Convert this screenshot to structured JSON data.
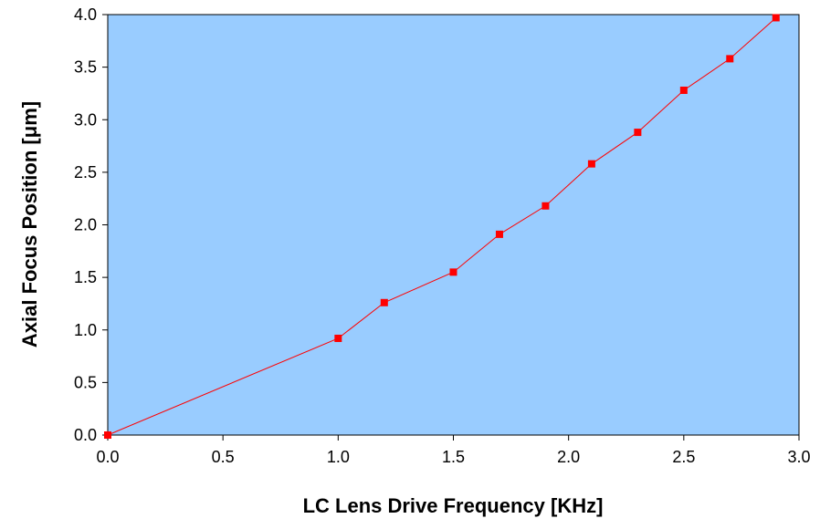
{
  "chart_data": {
    "type": "line",
    "title": "",
    "xlabel": "LC Lens Drive Frequency [KHz]",
    "ylabel": "Axial Focus Position [μm]",
    "xlim": [
      0.0,
      3.0
    ],
    "ylim": [
      0.0,
      4.0
    ],
    "x_ticks": [
      "0.0",
      "0.5",
      "1.0",
      "1.5",
      "2.0",
      "2.5",
      "3.0"
    ],
    "y_ticks": [
      "0.0",
      "0.5",
      "1.0",
      "1.5",
      "2.0",
      "2.5",
      "3.0",
      "3.5",
      "4.0"
    ],
    "grid": false,
    "legend": "none",
    "plot_background": "#99CCFF",
    "series": [
      {
        "color": "#FF0000",
        "marker": "square",
        "x": [
          0.0,
          1.0,
          1.2,
          1.5,
          1.7,
          1.9,
          2.1,
          2.3,
          2.5,
          2.7,
          2.9
        ],
        "y": [
          0.0,
          0.92,
          1.26,
          1.55,
          1.91,
          2.18,
          2.58,
          2.88,
          3.28,
          3.58,
          3.97
        ]
      }
    ]
  }
}
